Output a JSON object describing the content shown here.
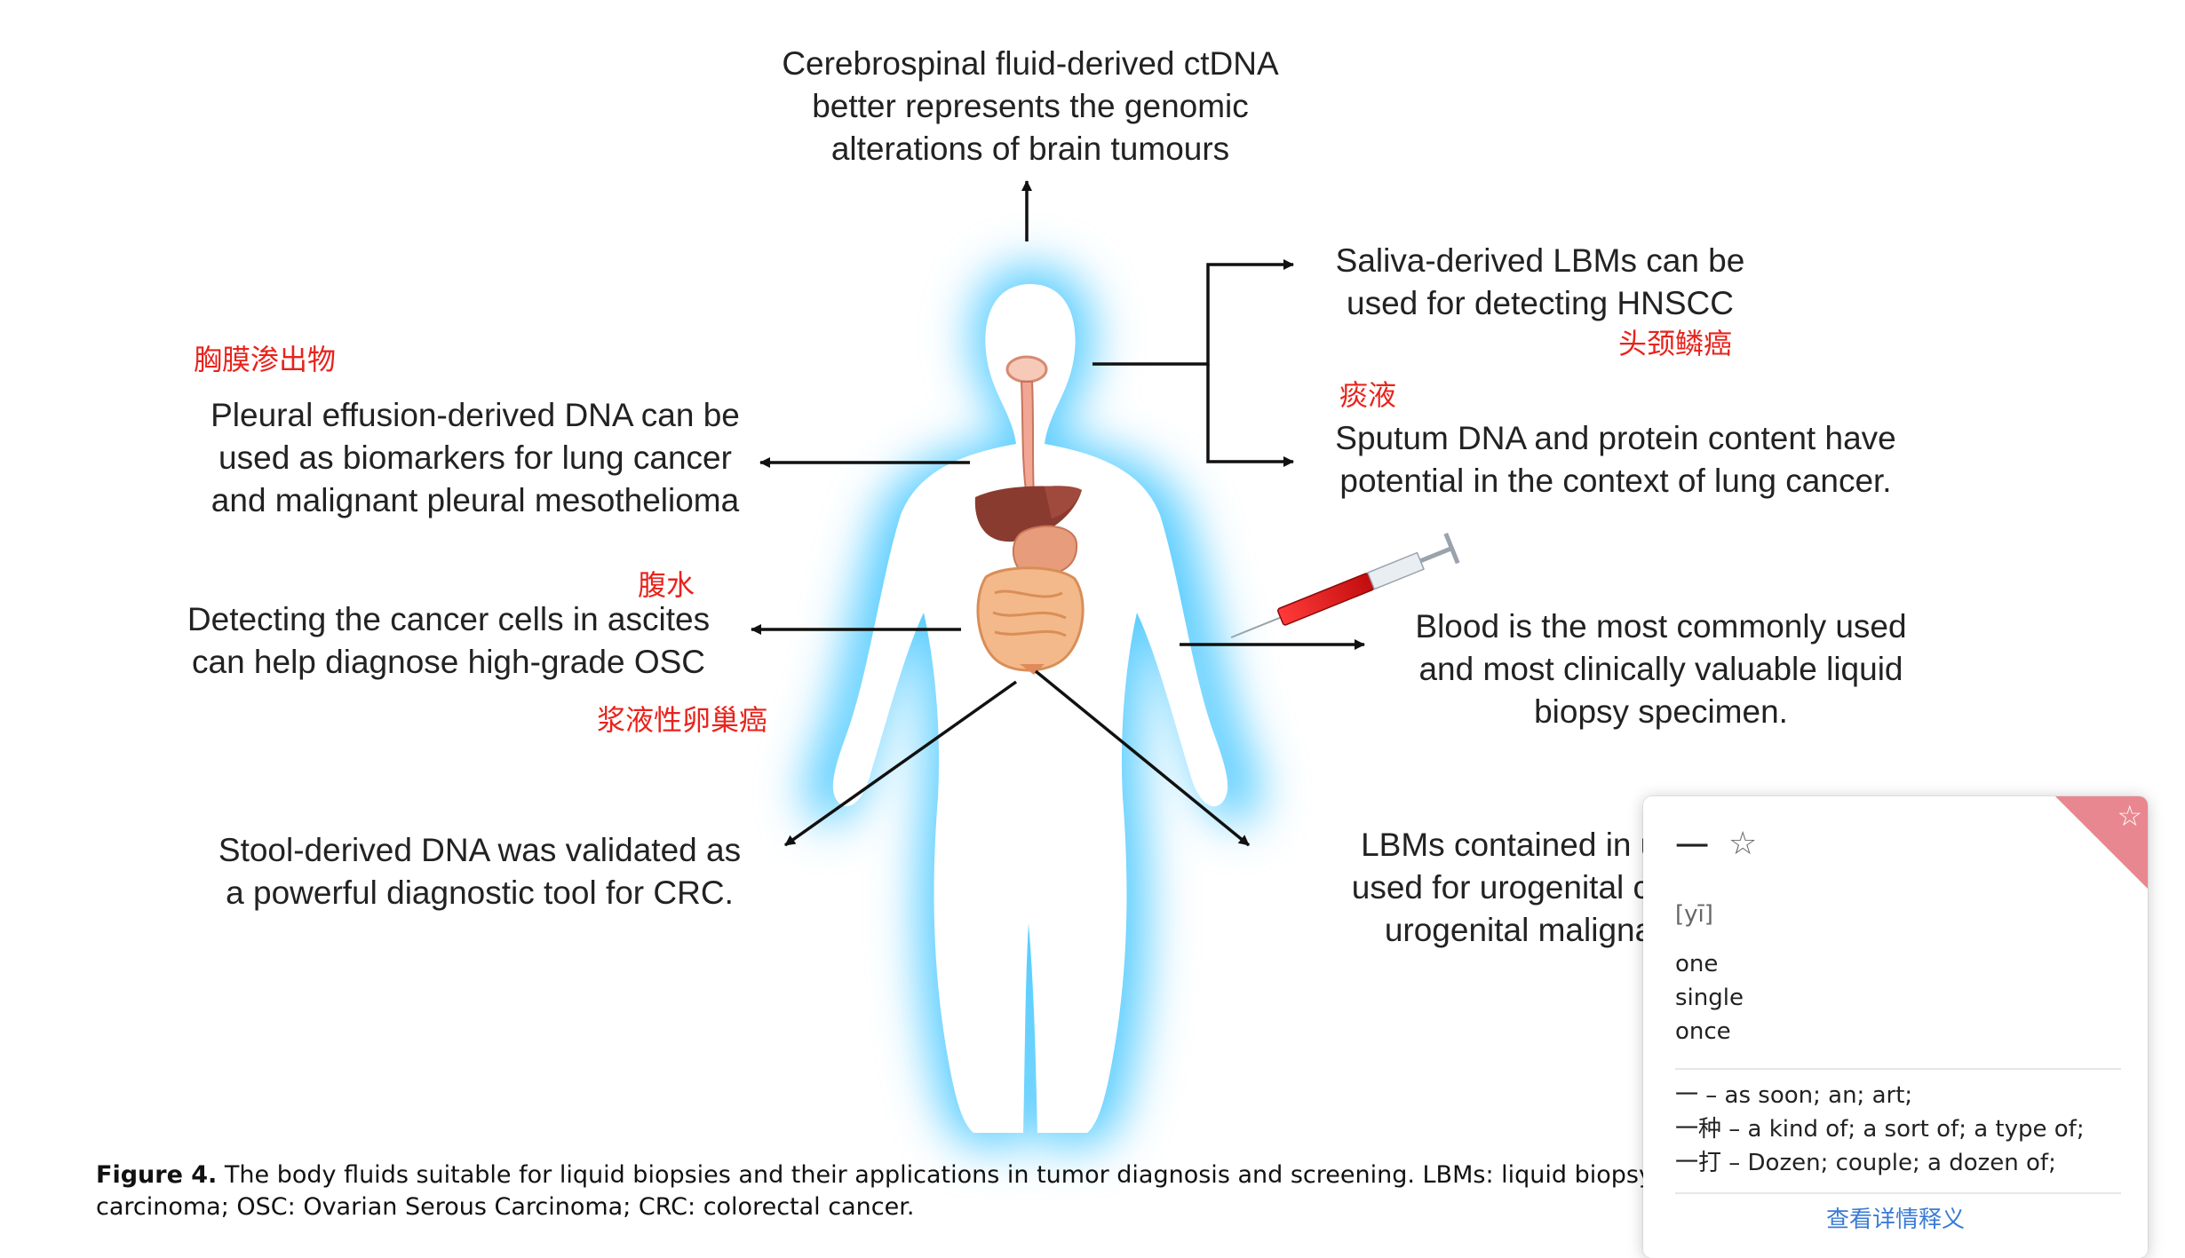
{
  "figure": {
    "top_label": [
      "Cerebrospinal fluid-derived ctDNA",
      "better represents the genomic",
      "alterations of brain tumours"
    ],
    "saliva_label": [
      "Saliva-derived LBMs can be",
      "used for detecting HNSCC"
    ],
    "saliva_zh": "头颈鳞癌",
    "sputum_zh": "痰液",
    "sputum_label": [
      "Sputum DNA and protein content have",
      "potential in the context of lung cancer."
    ],
    "pleural_zh": "胸膜渗出物",
    "pleural_label": [
      "Pleural effusion-derived DNA can be",
      "used as biomarkers for lung cancer",
      "and malignant pleural mesothelioma"
    ],
    "ascites_zh": "腹水",
    "ascites_label": [
      "Detecting the cancer cells in ascites",
      "can help diagnose high-grade OSC"
    ],
    "osc_zh": "浆液性卵巢癌",
    "blood_label": [
      "Blood is the most commonly used",
      "and most clinically valuable liquid",
      "biopsy specimen."
    ],
    "stool_label": [
      "Stool-derived DNA was validated as",
      "a powerful diagnostic tool for CRC."
    ],
    "urine_label": [
      "LBMs contained in uri",
      "used for urogenital can",
      "urogenital maligna"
    ]
  },
  "caption": {
    "figure_number": "Figure 4.",
    "text_line1": " The body fluids suitable for liquid biopsies and their applications in tumor diagnosis and screening. LBMs: liquid biopsy markers; HNSC",
    "text_line2": "carcinoma; OSC: Ovarian Serous Carcinoma; CRC: colorectal cancer."
  },
  "popup": {
    "headword": "一",
    "fav_icon": "star-outline-icon",
    "pinyin": "[yī]",
    "senses": [
      "one",
      "single",
      "once"
    ],
    "phrases": [
      "一 – as soon; an; art;",
      "一种 – a kind of; a sort of; a type of;",
      "一打 – Dozen; couple; a dozen of;"
    ],
    "more_link": "查看详情释义",
    "corner_color": "#e8878f"
  }
}
